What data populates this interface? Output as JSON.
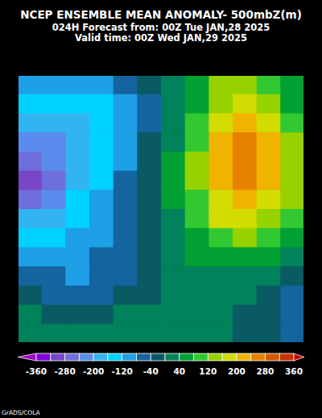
{
  "chart_data": {
    "type": "heatmap",
    "title": "NCEP ENSEMBLE MEAN ANOMALY- 500mbZ(m)",
    "subtitle": [
      "024H Forecast from: 00Z Tue JAN,28 2025",
      "Valid time: 00Z Wed JAN,29 2025"
    ],
    "credit": "GrADS/COLA",
    "tick_labels": false,
    "cells": [
      [
        -120,
        -120,
        -120,
        -100,
        -80,
        -40,
        20,
        60,
        120,
        120,
        80,
        40
      ],
      [
        -140,
        -150,
        -160,
        -130,
        -90,
        -50,
        10,
        70,
        140,
        160,
        120,
        60
      ],
      [
        -180,
        -180,
        -170,
        -140,
        -100,
        -50,
        20,
        90,
        170,
        200,
        170,
        100
      ],
      [
        -220,
        -210,
        -180,
        -140,
        -100,
        -40,
        30,
        110,
        210,
        240,
        210,
        140
      ],
      [
        -270,
        -240,
        -190,
        -140,
        -90,
        -40,
        40,
        120,
        230,
        260,
        220,
        150
      ],
      [
        -300,
        -250,
        -180,
        -130,
        -80,
        -30,
        40,
        120,
        220,
        240,
        210,
        140
      ],
      [
        -250,
        -210,
        -160,
        -110,
        -70,
        -20,
        40,
        110,
        190,
        210,
        180,
        120
      ],
      [
        -190,
        -170,
        -140,
        -100,
        -60,
        -20,
        30,
        90,
        160,
        170,
        150,
        90
      ],
      [
        -140,
        -130,
        -110,
        -90,
        -60,
        -20,
        20,
        60,
        110,
        120,
        100,
        60
      ],
      [
        -100,
        -100,
        -100,
        -80,
        -60,
        -20,
        10,
        40,
        60,
        60,
        50,
        20
      ],
      [
        -60,
        -80,
        -90,
        -80,
        -60,
        -30,
        10,
        30,
        30,
        20,
        0,
        -20
      ],
      [
        -30,
        -50,
        -60,
        -60,
        -40,
        -10,
        10,
        20,
        10,
        0,
        -30,
        -50
      ],
      [
        0,
        -10,
        -20,
        -20,
        0,
        10,
        20,
        20,
        10,
        -10,
        -40,
        -60
      ],
      [
        10,
        10,
        0,
        0,
        10,
        20,
        20,
        20,
        0,
        -20,
        -40,
        -50
      ]
    ],
    "colorbar": {
      "range": [
        -360,
        360
      ],
      "levels": [
        -360,
        -320,
        -280,
        -240,
        -200,
        -160,
        -120,
        -80,
        -40,
        0,
        40,
        80,
        120,
        160,
        200,
        240,
        280,
        320,
        360
      ],
      "ticks": [
        -360,
        -280,
        -200,
        -120,
        -40,
        40,
        120,
        200,
        280,
        360
      ],
      "colors": [
        "#a000c8",
        "#8200dc",
        "#7846c8",
        "#6e6edc",
        "#5a8cf0",
        "#32b4f0",
        "#00d2ff",
        "#1ea0e6",
        "#1464a0",
        "#0a5a64",
        "#00825a",
        "#00a032",
        "#32c832",
        "#96d200",
        "#d2dc00",
        "#f0b400",
        "#e68200",
        "#d25a00",
        "#c83200",
        "#c80000"
      ]
    }
  }
}
